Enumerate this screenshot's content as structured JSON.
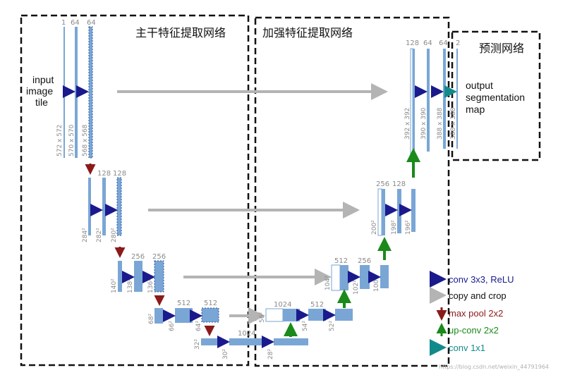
{
  "regions": {
    "encoder": "主干特征提取网络",
    "decoder": "加强特征提取网络",
    "head": "预测网络"
  },
  "input_label": [
    "input",
    "image",
    "tile"
  ],
  "output_label": [
    "output",
    "segmentation",
    "map"
  ],
  "level1": {
    "channels": [
      "1",
      "64",
      "64",
      "128",
      "64",
      "64",
      "2"
    ],
    "sizes": [
      "572 x 572",
      "570 x 570",
      "568 x 568",
      "392 x 392",
      "390 x 390",
      "388 x 388",
      "388 x 388"
    ]
  },
  "level2": {
    "channels": [
      "128",
      "128",
      "256",
      "128"
    ],
    "sizes": [
      "284²",
      "282²",
      "280²",
      "200²",
      "198²",
      "196²"
    ]
  },
  "level3": {
    "channels": [
      "256",
      "256",
      "512",
      "256"
    ],
    "sizes": [
      "140²",
      "138²",
      "136²",
      "104²",
      "102²",
      "100²"
    ]
  },
  "level4": {
    "channels": [
      "512",
      "512",
      "1024",
      "512"
    ],
    "sizes": [
      "68²",
      "66²",
      "64²",
      "56²",
      "54²",
      "52²"
    ]
  },
  "level5": {
    "channels": [
      "1024"
    ],
    "sizes": [
      "32²",
      "30²",
      "28²"
    ]
  },
  "legend": [
    {
      "label": "conv 3x3, ReLU",
      "color": "#1a1a8c",
      "icon": "navy-arrow"
    },
    {
      "label": "copy and crop",
      "color": "#111111",
      "icon": "gray-arrow"
    },
    {
      "label": "max pool 2x2",
      "color": "#8b1a1a",
      "icon": "red-down-arrow"
    },
    {
      "label": "up-conv 2x2",
      "color": "#1a8a1a",
      "icon": "green-up-arrow"
    },
    {
      "label": "conv 1x1",
      "color": "#138a8a",
      "icon": "teal-arrow"
    }
  ],
  "colors": {
    "feature_map": "#7aa6d6",
    "conv": "#1a1a8c",
    "copy": "#b4b4b4",
    "pool": "#8b1a1a",
    "upconv": "#1a8a1a",
    "conv1x1": "#138a8a"
  },
  "watermark": "https://blog.csdn.net/weixin_44791964"
}
